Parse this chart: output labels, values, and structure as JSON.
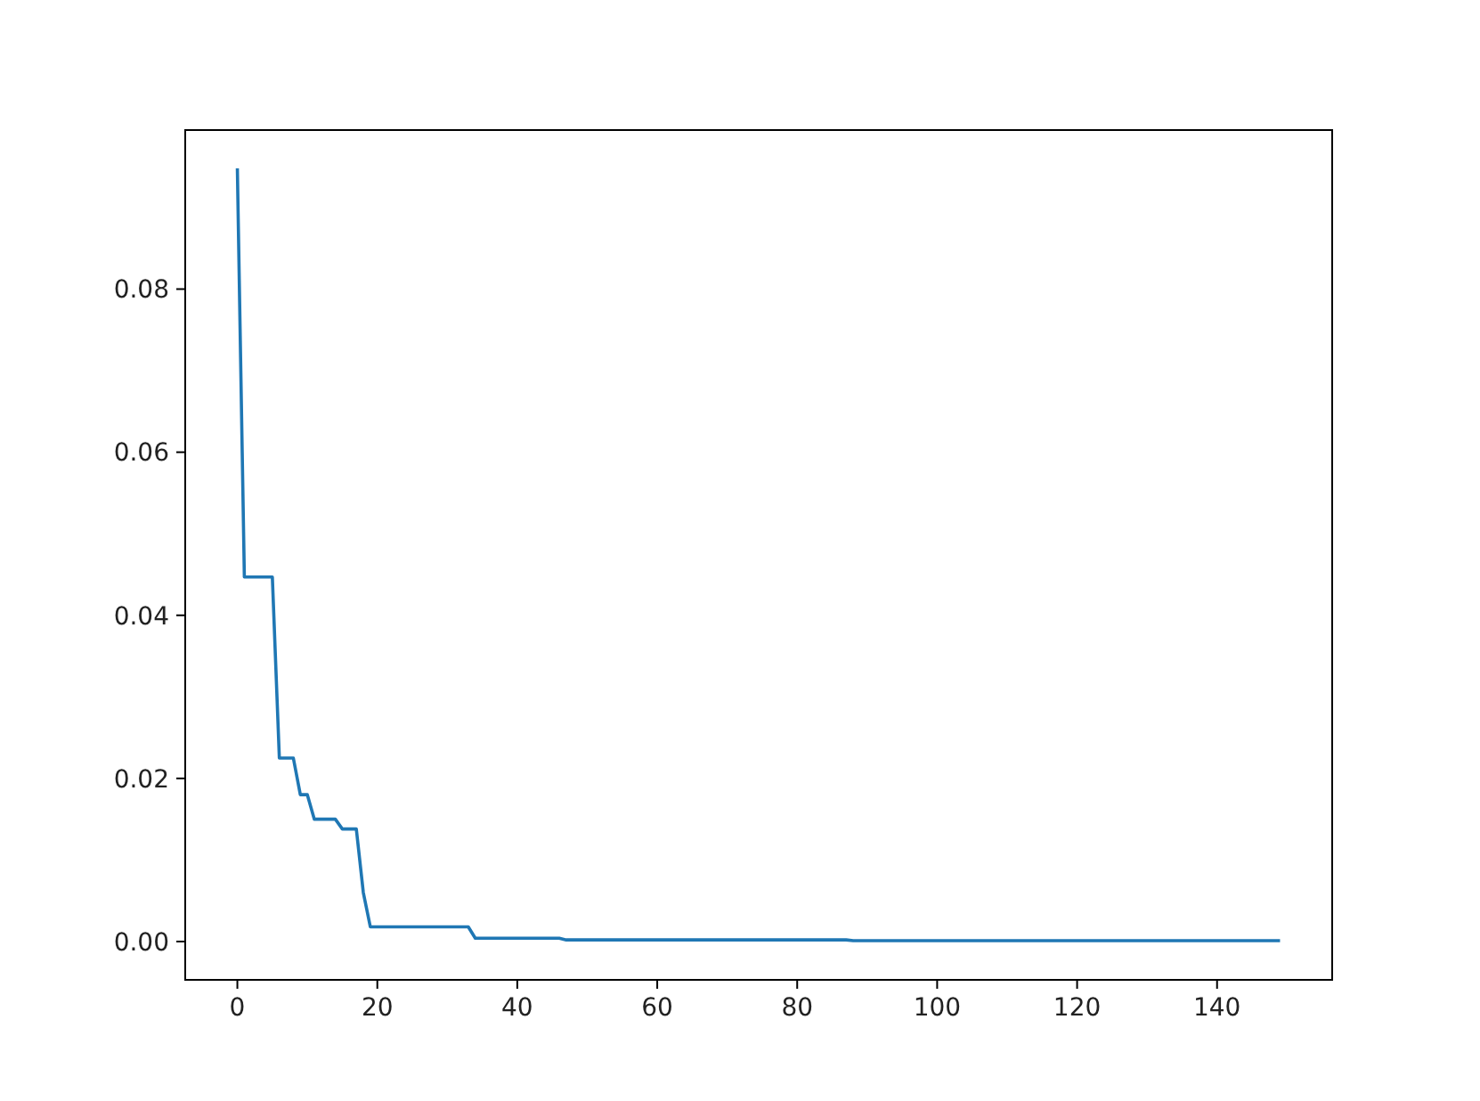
{
  "chart_data": {
    "type": "line",
    "x": [
      0,
      1,
      5,
      6,
      8,
      9,
      10,
      11,
      14,
      15,
      17,
      18,
      19,
      33,
      34,
      46,
      47,
      87,
      88,
      149
    ],
    "series": [
      {
        "color": "#1f77b4",
        "values": [
          0.0948,
          0.0447,
          0.0447,
          0.0225,
          0.0225,
          0.018,
          0.018,
          0.015,
          0.015,
          0.0138,
          0.0138,
          0.006,
          0.0018,
          0.0018,
          0.0004,
          0.0004,
          0.0002,
          0.0002,
          0.0001,
          0.0001
        ]
      }
    ],
    "xlim": [
      -7.45,
      156.45
    ],
    "xticks": [
      0,
      20,
      40,
      60,
      80,
      100,
      120,
      140
    ],
    "ylim": [
      -0.0047,
      0.0995
    ],
    "yticks": [
      {
        "value": 0,
        "label": "0.00"
      },
      {
        "value": 0.02,
        "label": "0.02"
      },
      {
        "value": 0.04,
        "label": "0.04"
      },
      {
        "value": 0.06,
        "label": "0.06"
      },
      {
        "value": 0.08,
        "label": "0.08"
      }
    ],
    "grid": false
  }
}
